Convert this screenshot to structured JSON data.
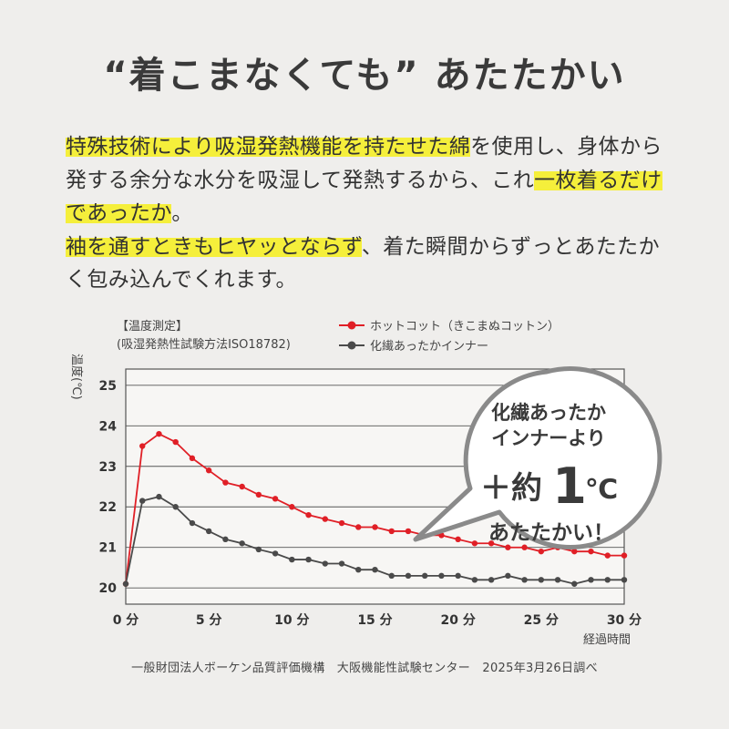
{
  "headline": "“着こまなくても” あたたかい",
  "paragraph": {
    "segments": [
      {
        "text": "特殊技術により吸湿発熱機能を持たせた綿",
        "highlight": true
      },
      {
        "text": "を使用し、身体から発する余分な水分を吸湿して発熱するから、これ",
        "highlight": false
      },
      {
        "text": "一枚着るだけであったか",
        "highlight": true
      },
      {
        "text": "。",
        "highlight": false
      },
      {
        "text": "\n",
        "highlight": false
      },
      {
        "text": "袖を通すときもヒヤッとならず",
        "highlight": true
      },
      {
        "text": "、着た瞬間からずっとあたたかく包み込んでくれます。",
        "highlight": false
      }
    ]
  },
  "measurement": {
    "label": "【温度測定】",
    "method": "(吸湿発熱性試験方法ISO18782)"
  },
  "callout": {
    "line1": "化繊あったか",
    "line2": "インナーより",
    "prefix": "＋約",
    "big": "1",
    "unit": "℃",
    "line4": "あたたかい！"
  },
  "source": "一般財団法人ボーケン品質評価機構　大阪機能性試験センター　2025年3月26日調べ",
  "colors": {
    "red": "#e01f26",
    "gray": "#4a4a4a",
    "highlight": "#f5ef3b"
  },
  "chart_data": {
    "type": "line",
    "ylabel": "温度(℃)",
    "xlabel": "経過時間",
    "x_tick_labels": [
      "0 分",
      "5 分",
      "10 分",
      "15 分",
      "20 分",
      "25 分",
      "30 分"
    ],
    "x_ticks": [
      0,
      5,
      10,
      15,
      20,
      25,
      30
    ],
    "y_ticks": [
      20,
      21,
      22,
      23,
      24,
      25
    ],
    "xlim": [
      0,
      30
    ],
    "ylim": [
      19.6,
      25.4
    ],
    "grid": true,
    "legend_position": "top",
    "series": [
      {
        "name": "ホットコット（きこまぬコットン）",
        "color": "#e01f26",
        "x": [
          0,
          1,
          2,
          3,
          4,
          5,
          6,
          7,
          8,
          9,
          10,
          11,
          12,
          13,
          14,
          15,
          16,
          17,
          18,
          19,
          20,
          21,
          22,
          23,
          24,
          25,
          26,
          27,
          28,
          29,
          30
        ],
        "values": [
          20.1,
          23.5,
          23.8,
          23.6,
          23.2,
          22.9,
          22.6,
          22.5,
          22.3,
          22.2,
          22.0,
          21.8,
          21.7,
          21.6,
          21.5,
          21.5,
          21.4,
          21.4,
          21.3,
          21.3,
          21.2,
          21.1,
          21.1,
          21.0,
          21.0,
          20.9,
          21.0,
          20.9,
          20.9,
          20.8,
          20.8
        ]
      },
      {
        "name": "化繊あったかインナー",
        "color": "#4a4a4a",
        "x": [
          0,
          1,
          2,
          3,
          4,
          5,
          6,
          7,
          8,
          9,
          10,
          11,
          12,
          13,
          14,
          15,
          16,
          17,
          18,
          19,
          20,
          21,
          22,
          23,
          24,
          25,
          26,
          27,
          28,
          29,
          30
        ],
        "values": [
          20.1,
          22.15,
          22.25,
          22.0,
          21.6,
          21.4,
          21.2,
          21.1,
          20.95,
          20.85,
          20.7,
          20.7,
          20.6,
          20.6,
          20.45,
          20.45,
          20.3,
          20.3,
          20.3,
          20.3,
          20.3,
          20.2,
          20.2,
          20.3,
          20.2,
          20.2,
          20.2,
          20.1,
          20.2,
          20.2,
          20.2
        ]
      }
    ]
  }
}
